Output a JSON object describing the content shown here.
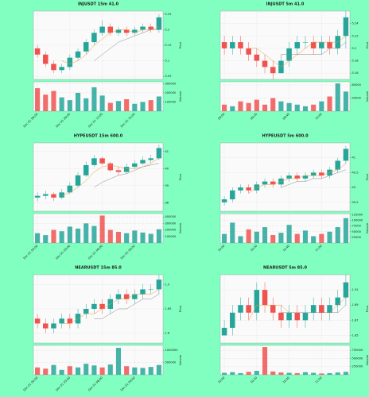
{
  "background": "#80ffc0",
  "chart_data": [
    {
      "type": "candlestick",
      "title": "INJUSDT 15m 41.0",
      "ylabel": "Price",
      "volume_label": "Volume",
      "grid": true,
      "up_color": "#26a69a",
      "down_color": "#ef5350",
      "ma_colors": [
        "#e59b3b",
        "#8c8c8c"
      ],
      "categories": [
        "Dec 01 06:00",
        null,
        null,
        null,
        "Dec 01 09:00",
        null,
        null,
        null,
        "Dec 01 12:00",
        null,
        null,
        null,
        "Dec 01 15:00",
        null,
        null,
        null
      ],
      "open": [
        5.14,
        5.12,
        5.09,
        5.07,
        5.08,
        5.11,
        5.13,
        5.16,
        5.19,
        5.21,
        5.19,
        5.2,
        5.19,
        5.2,
        5.21,
        5.2
      ],
      "high": [
        5.15,
        5.13,
        5.1,
        5.09,
        5.12,
        5.14,
        5.17,
        5.2,
        5.23,
        5.22,
        5.21,
        5.21,
        5.21,
        5.22,
        5.22,
        5.25
      ],
      "low": [
        5.11,
        5.08,
        5.06,
        5.06,
        5.07,
        5.1,
        5.12,
        5.15,
        5.18,
        5.18,
        5.18,
        5.18,
        5.18,
        5.19,
        5.19,
        5.19
      ],
      "close": [
        5.12,
        5.09,
        5.07,
        5.08,
        5.11,
        5.13,
        5.16,
        5.19,
        5.21,
        5.19,
        5.2,
        5.19,
        5.2,
        5.21,
        5.2,
        5.24
      ],
      "volume": [
        250000,
        180000,
        220000,
        150000,
        120000,
        200000,
        140000,
        260000,
        170000,
        90000,
        110000,
        130000,
        80000,
        100000,
        120000,
        160000
      ],
      "ma_fast": [
        null,
        null,
        null,
        5.1,
        5.09,
        5.1,
        5.12,
        5.15,
        5.17,
        5.19,
        5.2,
        5.2,
        5.19,
        5.2,
        5.2,
        5.21
      ],
      "ma_slow": [
        null,
        null,
        null,
        null,
        null,
        null,
        null,
        5.1,
        5.12,
        5.14,
        5.16,
        5.17,
        5.18,
        5.19,
        5.2,
        5.2
      ],
      "ylim": [
        5.04,
        5.26
      ],
      "yticks": [
        5.05,
        5.1,
        5.15,
        5.2,
        5.25
      ],
      "volume_ylim": [
        0,
        320000
      ],
      "volume_yticks": [
        100000,
        200000,
        300000
      ]
    },
    {
      "type": "candlestick",
      "title": "INJUSDT 5m 41.0",
      "ylabel": "Price",
      "volume_label": "Volume",
      "grid": true,
      "up_color": "#26a69a",
      "down_color": "#ef5350",
      "ma_colors": [
        "#e59b3b",
        "#8c8c8c"
      ],
      "categories": [
        "09:00",
        null,
        null,
        null,
        "09:20",
        null,
        null,
        null,
        "09:40",
        null,
        null,
        null,
        "10:00",
        null,
        null,
        null
      ],
      "open": [
        5.21,
        5.2,
        5.21,
        5.2,
        5.19,
        5.18,
        5.17,
        5.16,
        5.18,
        5.2,
        5.21,
        5.21,
        5.2,
        5.21,
        5.2,
        5.22
      ],
      "high": [
        5.22,
        5.22,
        5.22,
        5.21,
        5.2,
        5.19,
        5.18,
        5.19,
        5.21,
        5.22,
        5.22,
        5.22,
        5.22,
        5.22,
        5.23,
        5.26
      ],
      "low": [
        5.19,
        5.19,
        5.19,
        5.18,
        5.17,
        5.16,
        5.15,
        5.16,
        5.17,
        5.19,
        5.2,
        5.19,
        5.19,
        5.19,
        5.19,
        5.2
      ],
      "close": [
        5.2,
        5.21,
        5.2,
        5.19,
        5.18,
        5.17,
        5.16,
        5.18,
        5.2,
        5.21,
        5.21,
        5.2,
        5.21,
        5.2,
        5.22,
        5.25
      ],
      "volume": [
        20000,
        15000,
        30000,
        25000,
        35000,
        20000,
        40000,
        30000,
        25000,
        20000,
        15000,
        20000,
        30000,
        45000,
        85000,
        60000
      ],
      "ma_fast": [
        null,
        null,
        null,
        5.2,
        5.2,
        5.19,
        5.18,
        5.17,
        5.18,
        5.19,
        5.2,
        5.21,
        5.21,
        5.21,
        5.21,
        5.22
      ],
      "ma_slow": [
        null,
        null,
        null,
        null,
        null,
        null,
        null,
        5.19,
        5.19,
        5.19,
        5.19,
        5.19,
        5.19,
        5.2,
        5.2,
        5.21
      ],
      "ylim": [
        5.15,
        5.26
      ],
      "yticks": [
        5.16,
        5.18,
        5.2,
        5.22,
        5.24
      ],
      "volume_ylim": [
        0,
        90000
      ],
      "volume_yticks": [
        40000,
        80000
      ]
    },
    {
      "type": "candlestick",
      "title": "HYPEUSDT 15m 600.0",
      "ylabel": "Price",
      "volume_label": "Volume",
      "grid": true,
      "up_color": "#26a69a",
      "down_color": "#ef5350",
      "ma_colors": [
        "#e59b3b",
        "#8c8c8c"
      ],
      "categories": [
        "Dec 01 00:00",
        null,
        null,
        null,
        "Dec 01 03:00",
        null,
        null,
        null,
        "Dec 01 06:00",
        null,
        null,
        null,
        "Dec 01 09:00",
        null,
        null,
        null
      ],
      "open": [
        38.3,
        38.4,
        38.5,
        38.3,
        38.6,
        39.0,
        39.6,
        40.2,
        40.6,
        40.3,
        39.9,
        39.8,
        40.1,
        40.3,
        40.5,
        40.6
      ],
      "high": [
        38.6,
        38.7,
        38.6,
        38.8,
        39.2,
        39.8,
        40.4,
        40.8,
        40.7,
        40.4,
        40.1,
        40.3,
        40.5,
        40.7,
        40.8,
        41.4
      ],
      "low": [
        38.1,
        38.2,
        38.1,
        38.2,
        38.5,
        38.9,
        39.5,
        40.1,
        40.2,
        39.8,
        39.6,
        39.7,
        40.0,
        40.2,
        40.3,
        40.5
      ],
      "close": [
        38.4,
        38.5,
        38.3,
        38.6,
        39.0,
        39.6,
        40.2,
        40.6,
        40.3,
        39.9,
        39.8,
        40.1,
        40.3,
        40.5,
        40.6,
        41.2
      ],
      "volume": [
        150000,
        120000,
        200000,
        180000,
        250000,
        220000,
        300000,
        260000,
        420000,
        200000,
        170000,
        150000,
        190000,
        160000,
        140000,
        210000
      ],
      "ma_fast": [
        null,
        null,
        null,
        38.4,
        38.6,
        38.9,
        39.3,
        39.8,
        40.1,
        40.2,
        40.1,
        40.0,
        40.0,
        40.1,
        40.3,
        40.6
      ],
      "ma_slow": [
        null,
        null,
        null,
        null,
        null,
        null,
        null,
        38.9,
        39.2,
        39.4,
        39.6,
        39.7,
        39.9,
        40.1,
        40.2,
        40.3
      ],
      "ylim": [
        37.5,
        41.5
      ],
      "yticks": [
        38,
        39,
        40,
        41
      ],
      "volume_ylim": [
        0,
        450000
      ],
      "volume_yticks": [
        100000,
        200000,
        300000,
        400000
      ]
    },
    {
      "type": "candlestick",
      "title": "HYPEUSDT 5m 600.0",
      "ylabel": "Price",
      "volume_label": "Volume",
      "grid": true,
      "up_color": "#26a69a",
      "down_color": "#ef5350",
      "ma_colors": [
        "#e59b3b",
        "#8c8c8c"
      ],
      "categories": [
        "10:00",
        null,
        null,
        null,
        "10:20",
        null,
        null,
        null,
        "10:40",
        null,
        null,
        null,
        "11:00",
        null,
        null,
        null
      ],
      "open": [
        39.5,
        39.6,
        39.9,
        40.0,
        39.9,
        40.1,
        40.2,
        40.1,
        40.3,
        40.4,
        40.3,
        40.4,
        40.5,
        40.4,
        40.6,
        40.9
      ],
      "high": [
        39.7,
        40.0,
        40.1,
        40.1,
        40.2,
        40.3,
        40.3,
        40.4,
        40.5,
        40.5,
        40.5,
        40.6,
        40.6,
        40.7,
        41.0,
        41.4
      ],
      "low": [
        39.4,
        39.5,
        39.8,
        39.8,
        39.8,
        40.0,
        40.0,
        40.0,
        40.2,
        40.2,
        40.2,
        40.3,
        40.3,
        40.3,
        40.5,
        40.8
      ],
      "close": [
        39.6,
        39.9,
        40.0,
        39.9,
        40.1,
        40.2,
        40.1,
        40.3,
        40.4,
        40.3,
        40.4,
        40.5,
        40.4,
        40.6,
        40.9,
        41.3
      ],
      "volume": [
        40000,
        90000,
        30000,
        60000,
        50000,
        70000,
        35000,
        45000,
        80000,
        40000,
        55000,
        30000,
        40000,
        50000,
        70000,
        110000
      ],
      "ma_fast": [
        null,
        null,
        null,
        39.8,
        40.0,
        40.1,
        40.1,
        40.2,
        40.3,
        40.3,
        40.4,
        40.4,
        40.4,
        40.5,
        40.6,
        40.8
      ],
      "ma_slow": [
        null,
        null,
        null,
        null,
        null,
        null,
        null,
        40.0,
        40.1,
        40.2,
        40.2,
        40.3,
        40.3,
        40.4,
        40.5,
        40.6
      ],
      "ylim": [
        39.2,
        41.5
      ],
      "yticks": [
        39.5,
        40,
        40.5,
        41
      ],
      "volume_ylim": [
        0,
        130000
      ],
      "volume_yticks": [
        25000,
        50000,
        75000,
        100000,
        125000
      ]
    },
    {
      "type": "candlestick",
      "title": "NEARUSDT 15m 85.0",
      "ylabel": "Price",
      "volume_label": "Volume",
      "grid": true,
      "up_color": "#26a69a",
      "down_color": "#ef5350",
      "ma_colors": [
        "#e59b3b",
        "#8c8c8c"
      ],
      "categories": [
        "Dec 01 00:00",
        null,
        null,
        null,
        "Dec 01 03:00",
        null,
        null,
        null,
        "Dec 01 06:00",
        null,
        null,
        null,
        "Dec 01 09:00",
        null,
        null,
        null
      ],
      "open": [
        1.83,
        1.82,
        1.81,
        1.82,
        1.83,
        1.82,
        1.84,
        1.85,
        1.86,
        1.85,
        1.87,
        1.88,
        1.87,
        1.88,
        1.89,
        1.89
      ],
      "high": [
        1.84,
        1.83,
        1.83,
        1.84,
        1.84,
        1.85,
        1.86,
        1.87,
        1.87,
        1.88,
        1.89,
        1.89,
        1.89,
        1.9,
        1.9,
        1.92
      ],
      "low": [
        1.81,
        1.8,
        1.8,
        1.81,
        1.81,
        1.81,
        1.83,
        1.84,
        1.84,
        1.84,
        1.86,
        1.86,
        1.86,
        1.87,
        1.88,
        1.88
      ],
      "close": [
        1.82,
        1.81,
        1.82,
        1.83,
        1.82,
        1.84,
        1.85,
        1.86,
        1.85,
        1.87,
        1.88,
        1.87,
        1.88,
        1.89,
        1.89,
        1.91
      ],
      "volume": [
        300000,
        250000,
        400000,
        200000,
        350000,
        300000,
        450000,
        380000,
        300000,
        420000,
        1100000,
        350000,
        300000,
        280000,
        320000,
        400000
      ],
      "ma_fast": [
        null,
        null,
        null,
        1.82,
        1.82,
        1.83,
        1.84,
        1.84,
        1.85,
        1.86,
        1.87,
        1.87,
        1.88,
        1.88,
        1.88,
        1.89
      ],
      "ma_slow": [
        null,
        null,
        null,
        null,
        null,
        null,
        null,
        1.83,
        1.83,
        1.84,
        1.85,
        1.85,
        1.86,
        1.87,
        1.87,
        1.88
      ],
      "ylim": [
        1.78,
        1.92
      ],
      "yticks": [
        1.8,
        1.85,
        1.9
      ],
      "volume_ylim": [
        0,
        1200000
      ],
      "volume_yticks": [
        500000,
        1000000
      ]
    },
    {
      "type": "candlestick",
      "title": "NEARUSDT 5m 85.0",
      "ylabel": "Price",
      "volume_label": "Volume",
      "grid": true,
      "up_color": "#26a69a",
      "down_color": "#ef5350",
      "ma_colors": [
        "#e59b3b",
        "#8c8c8c"
      ],
      "categories": [
        "10:00",
        null,
        null,
        null,
        "10:20",
        null,
        null,
        null,
        "10:40",
        null,
        null,
        null,
        "11:00",
        null,
        null,
        null
      ],
      "open": [
        1.85,
        1.86,
        1.88,
        1.89,
        1.88,
        1.91,
        1.89,
        1.88,
        1.87,
        1.88,
        1.87,
        1.88,
        1.89,
        1.88,
        1.89,
        1.9
      ],
      "high": [
        1.87,
        1.89,
        1.9,
        1.9,
        1.92,
        1.92,
        1.9,
        1.89,
        1.89,
        1.89,
        1.89,
        1.9,
        1.9,
        1.9,
        1.91,
        1.93
      ],
      "low": [
        1.85,
        1.85,
        1.87,
        1.87,
        1.87,
        1.88,
        1.87,
        1.86,
        1.86,
        1.86,
        1.86,
        1.87,
        1.87,
        1.87,
        1.88,
        1.89
      ],
      "close": [
        1.86,
        1.88,
        1.89,
        1.88,
        1.91,
        1.89,
        1.88,
        1.87,
        1.88,
        1.87,
        1.88,
        1.89,
        1.88,
        1.89,
        1.9,
        1.92
      ],
      "volume": [
        60000,
        80000,
        50000,
        90000,
        120000,
        850000,
        100000,
        70000,
        60000,
        50000,
        80000,
        60000,
        40000,
        50000,
        70000,
        90000
      ],
      "ma_fast": [
        null,
        null,
        null,
        1.87,
        1.89,
        1.89,
        1.89,
        1.89,
        1.88,
        1.88,
        1.88,
        1.88,
        1.88,
        1.88,
        1.89,
        1.9
      ],
      "ma_slow": [
        null,
        null,
        null,
        null,
        null,
        null,
        null,
        1.88,
        1.88,
        1.88,
        1.88,
        1.88,
        1.88,
        1.88,
        1.88,
        1.89
      ],
      "ylim": [
        1.84,
        1.93
      ],
      "yticks": [
        1.85,
        1.87,
        1.89,
        1.91
      ],
      "volume_ylim": [
        0,
        900000
      ],
      "volume_yticks": [
        250000,
        500000,
        750000
      ]
    }
  ]
}
